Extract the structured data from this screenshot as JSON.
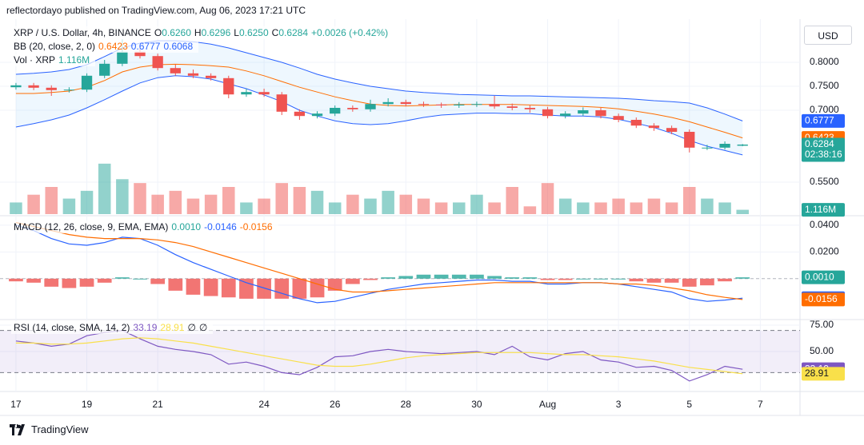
{
  "header": {
    "attribution": "reflectordayo published on TradingView.com, Aug 06, 2023 17:21 UTC",
    "currency": "USD",
    "footer": "TradingView"
  },
  "chart_data": [
    {
      "type": "candlestick",
      "title": "XRP / U.S. Dollar, 4h, BINANCE",
      "ohlc": [
        {
          "key": "O",
          "value": "0.6260"
        },
        {
          "key": "H",
          "value": "0.6296"
        },
        {
          "key": "L",
          "value": "0.6250"
        },
        {
          "key": "C",
          "value": "0.6284"
        }
      ],
      "change": "+0.0026 (+0.42%)",
      "x": [
        0,
        0.5,
        1,
        1.5,
        2,
        2.5,
        3,
        3.5,
        4,
        4.5,
        5,
        5.5,
        6,
        6.5,
        7,
        7.5,
        8,
        8.5,
        9,
        9.5,
        10,
        10.5,
        11,
        11.5,
        12,
        12.5,
        13,
        13.5,
        14,
        14.5,
        15,
        15.5,
        16,
        16.5,
        17,
        17.5,
        18,
        18.5,
        19,
        19.5,
        20,
        20.5
      ],
      "xlim": [
        -0.45,
        22.12
      ],
      "xticks": [
        {
          "value": 0,
          "label": "17"
        },
        {
          "value": 2,
          "label": "19"
        },
        {
          "value": 4,
          "label": "21"
        },
        {
          "value": 7,
          "label": "24"
        },
        {
          "value": 9,
          "label": "26"
        },
        {
          "value": 11,
          "label": "28"
        },
        {
          "value": 13,
          "label": "30"
        },
        {
          "value": 15,
          "label": "Aug"
        },
        {
          "value": 17,
          "label": "3"
        },
        {
          "value": 19,
          "label": "5"
        },
        {
          "value": 21,
          "label": "7"
        }
      ],
      "open": [
        0.748,
        0.752,
        0.747,
        0.742,
        0.743,
        0.772,
        0.797,
        0.822,
        0.813,
        0.788,
        0.777,
        0.772,
        0.767,
        0.733,
        0.738,
        0.733,
        0.697,
        0.688,
        0.693,
        0.705,
        0.702,
        0.713,
        0.717,
        0.713,
        0.712,
        0.71,
        0.712,
        0.713,
        0.708,
        0.705,
        0.702,
        0.688,
        0.693,
        0.7,
        0.688,
        0.68,
        0.668,
        0.663,
        0.655,
        0.622,
        0.622,
        0.626
      ],
      "high": [
        0.757,
        0.757,
        0.752,
        0.748,
        0.777,
        0.805,
        0.847,
        0.835,
        0.818,
        0.795,
        0.785,
        0.777,
        0.772,
        0.745,
        0.745,
        0.738,
        0.702,
        0.698,
        0.71,
        0.71,
        0.722,
        0.725,
        0.722,
        0.718,
        0.716,
        0.717,
        0.718,
        0.73,
        0.714,
        0.71,
        0.707,
        0.698,
        0.706,
        0.705,
        0.693,
        0.685,
        0.673,
        0.668,
        0.66,
        0.628,
        0.635,
        0.6296
      ],
      "low": [
        0.743,
        0.742,
        0.73,
        0.737,
        0.738,
        0.767,
        0.792,
        0.808,
        0.783,
        0.772,
        0.767,
        0.762,
        0.725,
        0.728,
        0.728,
        0.69,
        0.68,
        0.683,
        0.688,
        0.697,
        0.697,
        0.708,
        0.708,
        0.707,
        0.705,
        0.705,
        0.707,
        0.703,
        0.7,
        0.695,
        0.683,
        0.683,
        0.688,
        0.683,
        0.675,
        0.663,
        0.657,
        0.65,
        0.612,
        0.617,
        0.618,
        0.625
      ],
      "close": [
        0.752,
        0.747,
        0.742,
        0.743,
        0.772,
        0.797,
        0.822,
        0.813,
        0.788,
        0.777,
        0.772,
        0.767,
        0.733,
        0.738,
        0.733,
        0.697,
        0.688,
        0.693,
        0.705,
        0.702,
        0.713,
        0.717,
        0.713,
        0.712,
        0.71,
        0.712,
        0.713,
        0.708,
        0.705,
        0.702,
        0.688,
        0.693,
        0.7,
        0.688,
        0.68,
        0.668,
        0.663,
        0.655,
        0.622,
        0.622,
        0.63,
        0.6284
      ],
      "last_label": "0.6284",
      "countdown": "02:38:16",
      "up_color": "#26a69a",
      "down_color": "#ef5350",
      "ylim": [
        0.48,
        0.88
      ],
      "yticks": [
        {
          "value": 0.8,
          "label": "0.8000"
        },
        {
          "value": 0.75,
          "label": "0.7500"
        },
        {
          "value": 0.7,
          "label": "0.7000"
        },
        {
          "value": 0.55,
          "label": "0.5500"
        }
      ],
      "grid": true,
      "bb": {
        "label": "BB (20, close, 2, 0)",
        "fill": "rgba(33,150,243,0.08)",
        "series": [
          {
            "color": "#ff6d00",
            "last_label": "0.6423",
            "values": [
              0.735,
              0.735,
              0.737,
              0.74,
              0.748,
              0.762,
              0.78,
              0.79,
              0.795,
              0.796,
              0.795,
              0.793,
              0.79,
              0.782,
              0.772,
              0.76,
              0.748,
              0.738,
              0.728,
              0.72,
              0.713,
              0.71,
              0.709,
              0.71,
              0.711,
              0.712,
              0.712,
              0.712,
              0.712,
              0.711,
              0.71,
              0.709,
              0.708,
              0.706,
              0.703,
              0.698,
              0.692,
              0.685,
              0.676,
              0.665,
              0.654,
              0.6423
            ]
          },
          {
            "color": "#2962ff",
            "last_label": "0.6777",
            "values": [
              0.775,
              0.777,
              0.78,
              0.785,
              0.795,
              0.812,
              0.83,
              0.84,
              0.845,
              0.845,
              0.843,
              0.838,
              0.83,
              0.82,
              0.81,
              0.8,
              0.788,
              0.775,
              0.765,
              0.757,
              0.75,
              0.745,
              0.74,
              0.737,
              0.735,
              0.733,
              0.732,
              0.731,
              0.73,
              0.73,
              0.729,
              0.728,
              0.727,
              0.726,
              0.725,
              0.723,
              0.72,
              0.718,
              0.715,
              0.705,
              0.692,
              0.6777
            ]
          },
          {
            "color": "#2962ff",
            "last_label": "0.6068",
            "values": [
              0.665,
              0.672,
              0.68,
              0.69,
              0.705,
              0.722,
              0.74,
              0.757,
              0.768,
              0.772,
              0.77,
              0.765,
              0.755,
              0.745,
              0.732,
              0.718,
              0.7,
              0.688,
              0.678,
              0.672,
              0.67,
              0.672,
              0.678,
              0.685,
              0.69,
              0.692,
              0.694,
              0.694,
              0.693,
              0.693,
              0.69,
              0.688,
              0.688,
              0.686,
              0.681,
              0.673,
              0.664,
              0.652,
              0.637,
              0.625,
              0.616,
              0.6068
            ]
          }
        ]
      }
    },
    {
      "type": "bar",
      "label": "Vol · XRP",
      "last_label": "1.116M",
      "ylim": [
        0,
        14
      ],
      "values": [
        3,
        5,
        7,
        4,
        6,
        13,
        9,
        8,
        5,
        6,
        4,
        5,
        7,
        3,
        4,
        8,
        7,
        6,
        3,
        5,
        4,
        6,
        5,
        4,
        3,
        3,
        5,
        3,
        7,
        2,
        8,
        4,
        3,
        3,
        4,
        3,
        4,
        3,
        7,
        4,
        3,
        1.116
      ]
    },
    {
      "type": "macd",
      "label": "MACD (12, 26, close, 9, EMA, EMA)",
      "ylim": [
        -0.0306,
        0.0459
      ],
      "yticks": [
        {
          "value": 0.04,
          "label": "0.0400"
        },
        {
          "value": 0.02,
          "label": "0.0200"
        }
      ],
      "histogram": {
        "up_color": "#26a69a",
        "down_color": "#ef5350",
        "last_label": "0.0010",
        "values": [
          -0.002,
          -0.003,
          -0.006,
          -0.007,
          -0.006,
          -0.003,
          0.001,
          0,
          -0.004,
          -0.009,
          -0.012,
          -0.013,
          -0.014,
          -0.015,
          -0.015,
          -0.015,
          -0.015,
          -0.014,
          -0.009,
          -0.004,
          -0.001,
          0.001,
          0.002,
          0.003,
          0.003,
          0.003,
          0.003,
          0.002,
          0.001,
          0.001,
          -0.001,
          -0.001,
          0,
          0,
          0,
          -0.002,
          -0.003,
          -0.003,
          -0.006,
          -0.005,
          -0.002,
          0.001
        ]
      },
      "series": [
        {
          "color": "#2962ff",
          "last_label": "-0.0146",
          "values": [
            0.04,
            0.036,
            0.03,
            0.026,
            0.025,
            0.027,
            0.031,
            0.03,
            0.025,
            0.018,
            0.012,
            0.007,
            0.002,
            -0.003,
            -0.007,
            -0.011,
            -0.015,
            -0.018,
            -0.017,
            -0.014,
            -0.011,
            -0.008,
            -0.006,
            -0.004,
            -0.003,
            -0.002,
            -0.001,
            -0.001,
            -0.002,
            -0.002,
            -0.004,
            -0.004,
            -0.003,
            -0.003,
            -0.004,
            -0.006,
            -0.008,
            -0.01,
            -0.015,
            -0.017,
            -0.016,
            -0.0146
          ]
        },
        {
          "color": "#ff6d00",
          "last_label": "-0.0156",
          "values": [
            0.042,
            0.039,
            0.036,
            0.033,
            0.031,
            0.03,
            0.03,
            0.03,
            0.029,
            0.027,
            0.024,
            0.02,
            0.016,
            0.012,
            0.008,
            0.004,
            0,
            -0.004,
            -0.008,
            -0.01,
            -0.01,
            -0.009,
            -0.008,
            -0.007,
            -0.006,
            -0.005,
            -0.004,
            -0.003,
            -0.003,
            -0.003,
            -0.003,
            -0.003,
            -0.003,
            -0.003,
            -0.004,
            -0.004,
            -0.005,
            -0.007,
            -0.009,
            -0.012,
            -0.014,
            -0.0156
          ]
        }
      ]
    },
    {
      "type": "line",
      "label": "RSI (14, close, SMA, 14, 2)",
      "flags": [
        "∅",
        "∅"
      ],
      "ylim": [
        12.1,
        80.3
      ],
      "yticks": [
        {
          "value": 75,
          "label": "75.00"
        },
        {
          "value": 50,
          "label": "50.00"
        }
      ],
      "band": [
        30,
        70
      ],
      "band_color": "rgba(126,87,194,0.1)",
      "series": [
        {
          "color": "#7e57c2",
          "text_color": "#ffffff",
          "last_label": "33.19",
          "values": [
            60,
            58,
            55,
            57,
            65,
            68,
            70,
            62,
            55,
            52,
            50,
            47,
            38,
            40,
            36,
            30,
            28,
            35,
            45,
            46,
            50,
            52,
            50,
            49,
            48,
            49,
            50,
            47,
            55,
            45,
            42,
            48,
            50,
            42,
            40,
            35,
            36,
            32,
            22,
            28,
            36,
            33.19
          ]
        },
        {
          "color": "#f9e04a",
          "text_color": "#131722",
          "last_label": "28.91",
          "values": [
            58,
            58,
            57,
            57,
            58,
            60,
            62,
            63,
            62,
            60,
            58,
            55,
            52,
            49,
            46,
            43,
            40,
            37,
            36,
            36,
            38,
            41,
            44,
            46,
            47,
            48,
            49,
            49,
            49,
            49,
            48,
            47,
            47,
            46,
            45,
            43,
            41,
            38,
            35,
            33,
            31,
            28.91
          ]
        }
      ]
    }
  ]
}
